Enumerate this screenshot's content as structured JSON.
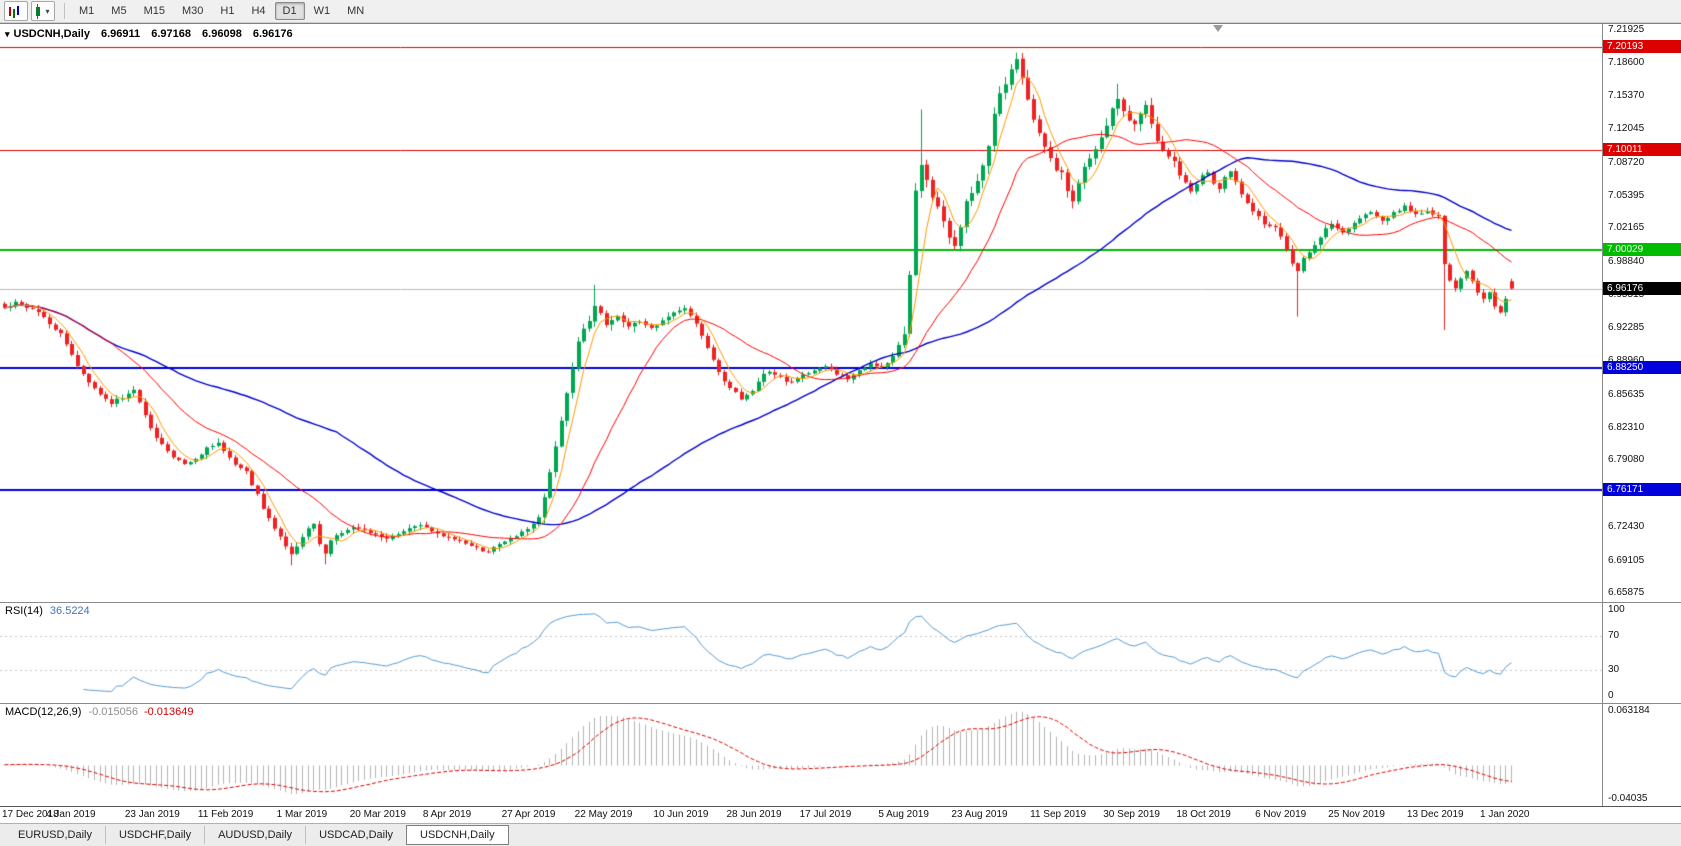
{
  "toolbar": {
    "timeframes": [
      "M1",
      "M5",
      "M15",
      "M30",
      "H1",
      "H4",
      "D1",
      "W1",
      "MN"
    ],
    "active_timeframe": "D1"
  },
  "chart": {
    "title": {
      "symbol": "USDCNH,Daily",
      "open": "6.96911",
      "high": "6.97168",
      "low": "6.96098",
      "close": "6.96176"
    },
    "price_axis_ticks": [
      "7.21925",
      "7.18600",
      "7.15370",
      "7.12045",
      "7.08720",
      "7.05395",
      "7.02165",
      "6.98840",
      "6.95515",
      "6.92285",
      "6.88960",
      "6.85635",
      "6.82310",
      "6.79080",
      "6.75755",
      "6.72430",
      "6.69105",
      "6.65875"
    ],
    "hlines": [
      {
        "price": "7.20193",
        "value": 7.20193,
        "color": "#dd0000",
        "width": 1
      },
      {
        "price": "7.10011",
        "value": 7.10011,
        "color": "#dd0000",
        "width": 1
      },
      {
        "price": "7.00029",
        "value": 7.00029,
        "color": "#00bb00",
        "width": 2
      },
      {
        "price": "6.88250",
        "value": 6.8825,
        "color": "#0000dd",
        "width": 2
      },
      {
        "price": "6.76171",
        "value": 6.76171,
        "color": "#0000dd",
        "width": 2
      }
    ],
    "bid_line": {
      "price": "6.96176",
      "value": 6.96176,
      "line_color": "#bbbbbb",
      "label_color": "#000000"
    },
    "colors": {
      "up": "#00a651",
      "down": "#ee2222",
      "ma_fast": "#ff9900",
      "ma_mid": "#ff0000",
      "ma_slow": "#0000cc"
    }
  },
  "rsi_panel": {
    "label": "RSI(14)",
    "value": "36.5224",
    "ticks": [
      "100",
      "70",
      "30",
      "0"
    ],
    "levels": [
      70,
      30
    ],
    "line_color": "#569bd2"
  },
  "macd_panel": {
    "label": "MACD(12,26,9)",
    "value_main": "-0.015056",
    "value_signal": "-0.013649",
    "ticks": [
      "0.063184",
      "-0.04035"
    ],
    "histogram_color": "#b4b4b4",
    "signal_color": "#dd0000"
  },
  "time_axis": {
    "labels": [
      "17 Dec 2018",
      "4 Jan 2019",
      "23 Jan 2019",
      "11 Feb 2019",
      "1 Mar 2019",
      "20 Mar 2019",
      "8 Apr 2019",
      "27 Apr 2019",
      "22 May 2019",
      "10 Jun 2019",
      "28 Jun 2019",
      "17 Jul 2019",
      "5 Aug 2019",
      "23 Aug 2019",
      "11 Sep 2019",
      "30 Sep 2019",
      "18 Oct 2019",
      "6 Nov 2019",
      "25 Nov 2019",
      "13 Dec 2019",
      "1 Jan 2020"
    ]
  },
  "tabs": {
    "items": [
      "EURUSD,Daily",
      "USDCHF,Daily",
      "AUDUSD,Daily",
      "USDCAD,Daily",
      "USDCNH,Daily"
    ],
    "active": "USDCNH,Daily"
  },
  "chart_data": {
    "type": "candlestick",
    "symbol": "USDCNH",
    "timeframe": "Daily",
    "bars": 269,
    "seed": 77,
    "y_range": [
      6.65,
      7.225
    ],
    "last_bar": {
      "open": 6.96911,
      "high": 6.97168,
      "low": 6.96098,
      "close": 6.96176
    },
    "close_anchors": [
      [
        0,
        6.943
      ],
      [
        2,
        6.948
      ],
      [
        4,
        6.944
      ],
      [
        6,
        6.937
      ],
      [
        8,
        6.928
      ],
      [
        10,
        6.916
      ],
      [
        12,
        6.896
      ],
      [
        13,
        6.884
      ],
      [
        15,
        6.87
      ],
      [
        17,
        6.858
      ],
      [
        19,
        6.847
      ],
      [
        21,
        6.854
      ],
      [
        23,
        6.862
      ],
      [
        24,
        6.85
      ],
      [
        26,
        6.824
      ],
      [
        28,
        6.806
      ],
      [
        30,
        6.794
      ],
      [
        32,
        6.788
      ],
      [
        34,
        6.792
      ],
      [
        36,
        6.803
      ],
      [
        38,
        6.808
      ],
      [
        39,
        6.8
      ],
      [
        41,
        6.788
      ],
      [
        43,
        6.78
      ],
      [
        45,
        6.756
      ],
      [
        47,
        6.732
      ],
      [
        49,
        6.714
      ],
      [
        51,
        6.698
      ],
      [
        52,
        6.706
      ],
      [
        54,
        6.722
      ],
      [
        55,
        6.728
      ],
      [
        56,
        6.708
      ],
      [
        57,
        6.698
      ],
      [
        58,
        6.712
      ],
      [
        60,
        6.719
      ],
      [
        62,
        6.725
      ],
      [
        64,
        6.721
      ],
      [
        66,
        6.716
      ],
      [
        68,
        6.713
      ],
      [
        70,
        6.718
      ],
      [
        72,
        6.723
      ],
      [
        74,
        6.727
      ],
      [
        76,
        6.722
      ],
      [
        78,
        6.717
      ],
      [
        80,
        6.713
      ],
      [
        82,
        6.709
      ],
      [
        84,
        6.704
      ],
      [
        86,
        6.7
      ],
      [
        88,
        6.707
      ],
      [
        90,
        6.713
      ],
      [
        92,
        6.719
      ],
      [
        94,
        6.726
      ],
      [
        95,
        6.735
      ],
      [
        96,
        6.756
      ],
      [
        97,
        6.778
      ],
      [
        98,
        6.806
      ],
      [
        99,
        6.832
      ],
      [
        100,
        6.858
      ],
      [
        101,
        6.884
      ],
      [
        102,
        6.908
      ],
      [
        103,
        6.922
      ],
      [
        104,
        6.931
      ],
      [
        105,
        6.944
      ],
      [
        106,
        6.938
      ],
      [
        107,
        6.927
      ],
      [
        109,
        6.936
      ],
      [
        111,
        6.923
      ],
      [
        113,
        6.93
      ],
      [
        115,
        6.921
      ],
      [
        117,
        6.929
      ],
      [
        119,
        6.938
      ],
      [
        121,
        6.944
      ],
      [
        123,
        6.928
      ],
      [
        125,
        6.902
      ],
      [
        127,
        6.878
      ],
      [
        129,
        6.864
      ],
      [
        131,
        6.852
      ],
      [
        133,
        6.86
      ],
      [
        134,
        6.871
      ],
      [
        136,
        6.88
      ],
      [
        138,
        6.873
      ],
      [
        140,
        6.868
      ],
      [
        142,
        6.875
      ],
      [
        144,
        6.881
      ],
      [
        146,
        6.883
      ],
      [
        148,
        6.878
      ],
      [
        150,
        6.873
      ],
      [
        152,
        6.879
      ],
      [
        154,
        6.887
      ],
      [
        156,
        6.883
      ],
      [
        158,
        6.893
      ],
      [
        160,
        6.915
      ],
      [
        161,
        6.975
      ],
      [
        162,
        7.06
      ],
      [
        163,
        7.085
      ],
      [
        164,
        7.07
      ],
      [
        165,
        7.052
      ],
      [
        166,
        7.042
      ],
      [
        167,
        7.028
      ],
      [
        168,
        7.012
      ],
      [
        169,
        7.004
      ],
      [
        170,
        7.024
      ],
      [
        171,
        7.048
      ],
      [
        172,
        7.058
      ],
      [
        173,
        7.068
      ],
      [
        174,
        7.085
      ],
      [
        175,
        7.105
      ],
      [
        176,
        7.135
      ],
      [
        177,
        7.155
      ],
      [
        178,
        7.165
      ],
      [
        179,
        7.18
      ],
      [
        180,
        7.19
      ],
      [
        181,
        7.17
      ],
      [
        182,
        7.15
      ],
      [
        183,
        7.13
      ],
      [
        184,
        7.116
      ],
      [
        185,
        7.104
      ],
      [
        186,
        7.09
      ],
      [
        187,
        7.08
      ],
      [
        188,
        7.076
      ],
      [
        189,
        7.06
      ],
      [
        190,
        7.05
      ],
      [
        191,
        7.068
      ],
      [
        192,
        7.083
      ],
      [
        193,
        7.092
      ],
      [
        194,
        7.1
      ],
      [
        195,
        7.113
      ],
      [
        196,
        7.124
      ],
      [
        197,
        7.14
      ],
      [
        198,
        7.15
      ],
      [
        199,
        7.138
      ],
      [
        200,
        7.13
      ],
      [
        201,
        7.127
      ],
      [
        202,
        7.136
      ],
      [
        203,
        7.143
      ],
      [
        204,
        7.127
      ],
      [
        205,
        7.11
      ],
      [
        206,
        7.1
      ],
      [
        207,
        7.094
      ],
      [
        208,
        7.088
      ],
      [
        209,
        7.076
      ],
      [
        210,
        7.066
      ],
      [
        211,
        7.06
      ],
      [
        212,
        7.067
      ],
      [
        213,
        7.073
      ],
      [
        214,
        7.077
      ],
      [
        215,
        7.067
      ],
      [
        216,
        7.06
      ],
      [
        217,
        7.071
      ],
      [
        218,
        7.079
      ],
      [
        219,
        7.067
      ],
      [
        220,
        7.056
      ],
      [
        221,
        7.046
      ],
      [
        222,
        7.038
      ],
      [
        223,
        7.032
      ],
      [
        224,
        7.027
      ],
      [
        226,
        7.023
      ],
      [
        227,
        7.012
      ],
      [
        228,
        7.0
      ],
      [
        229,
        6.986
      ],
      [
        230,
        6.979
      ],
      [
        231,
        6.991
      ],
      [
        232,
        6.997
      ],
      [
        233,
        7.005
      ],
      [
        234,
        7.011
      ],
      [
        235,
        7.021
      ],
      [
        236,
        7.027
      ],
      [
        238,
        7.019
      ],
      [
        240,
        7.027
      ],
      [
        241,
        7.033
      ],
      [
        243,
        7.037
      ],
      [
        245,
        7.029
      ],
      [
        247,
        7.037
      ],
      [
        249,
        7.043
      ],
      [
        251,
        7.035
      ],
      [
        253,
        7.039
      ],
      [
        255,
        7.035
      ],
      [
        256,
        6.986
      ],
      [
        257,
        6.97
      ],
      [
        258,
        6.962
      ],
      [
        259,
        6.973
      ],
      [
        260,
        6.979
      ],
      [
        261,
        6.969
      ],
      [
        262,
        6.959
      ],
      [
        263,
        6.951
      ],
      [
        264,
        6.957
      ],
      [
        265,
        6.943
      ],
      [
        266,
        6.937
      ],
      [
        267,
        6.951
      ],
      [
        268,
        6.96176
      ]
    ],
    "wick_overrides": [
      {
        "i": 51,
        "low": 6.6865
      },
      {
        "i": 57,
        "low": 6.6875
      },
      {
        "i": 105,
        "high": 6.9655
      },
      {
        "i": 163,
        "high": 7.14
      },
      {
        "i": 180,
        "high": 7.1965
      },
      {
        "i": 198,
        "high": 7.1655
      },
      {
        "i": 230,
        "low": 6.934
      },
      {
        "i": 256,
        "low": 6.9205
      }
    ],
    "indicators": [
      {
        "name": "SMA",
        "period": 5,
        "color": "#ff9900"
      },
      {
        "name": "SMA",
        "period": 20,
        "color": "#ff0000"
      },
      {
        "name": "SMA",
        "period": 60,
        "color": "#0000cc"
      },
      {
        "name": "RSI",
        "period": 14,
        "current": 36.5224
      },
      {
        "name": "MACD",
        "fast": 12,
        "slow": 26,
        "signal_period": 9,
        "current_main": -0.015056,
        "current_signal": -0.013649
      }
    ]
  }
}
